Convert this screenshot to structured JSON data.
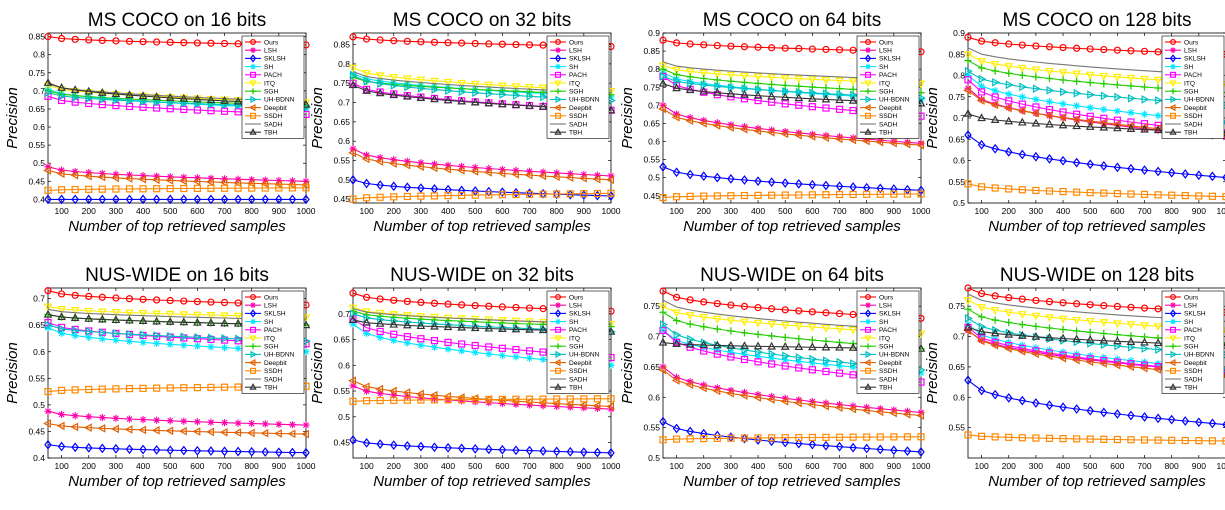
{
  "figure": {
    "background": "#ffffff"
  },
  "style": {
    "methods": [
      {
        "name": "Ours",
        "color": "#ff0000",
        "marker": "circle"
      },
      {
        "name": "LSH",
        "color": "#ff00aa",
        "marker": "star"
      },
      {
        "name": "SKLSH",
        "color": "#0000ff",
        "marker": "diamond"
      },
      {
        "name": "SH",
        "color": "#00e5ff",
        "marker": "star"
      },
      {
        "name": "PACH",
        "color": "#ff00ff",
        "marker": "square"
      },
      {
        "name": "ITQ",
        "color": "#ffee00",
        "marker": "triangle-down"
      },
      {
        "name": "SGH",
        "color": "#22cc00",
        "marker": "plus"
      },
      {
        "name": "UH-BDNN",
        "color": "#00bfbf",
        "marker": "triangle-right"
      },
      {
        "name": "Deepbit",
        "color": "#e06000",
        "marker": "triangle-left"
      },
      {
        "name": "SSDH",
        "color": "#ff8800",
        "marker": "square"
      },
      {
        "name": "SADH",
        "color": "#777777",
        "marker": "none"
      },
      {
        "name": "TBH",
        "color": "#333333",
        "marker": "triangle-up"
      }
    ]
  },
  "chart_data": [
    {
      "type": "line",
      "title": "MS COCO on 16 bits",
      "xlabel": "Number of top retrieved samples",
      "ylabel": "Precision",
      "x": [
        50,
        1000
      ],
      "xlim": [
        50,
        1000
      ],
      "xticks": [
        "100",
        "200",
        "300",
        "400",
        "500",
        "600",
        "700",
        "800",
        "900",
        "1000"
      ],
      "ylim": [
        0.39,
        0.86
      ],
      "yticks": [
        "0.4",
        "0.45",
        "0.5",
        "0.55",
        "0.6",
        "0.65",
        "0.7",
        "0.75",
        "0.8",
        "0.85"
      ],
      "legend": "top-right",
      "series": [
        {
          "name": "Ours",
          "values": [
            0.85,
            0.827
          ]
        },
        {
          "name": "LSH",
          "values": [
            0.49,
            0.45
          ]
        },
        {
          "name": "SKLSH",
          "values": [
            0.4,
            0.4
          ]
        },
        {
          "name": "SH",
          "values": [
            0.705,
            0.65
          ]
        },
        {
          "name": "PACH",
          "values": [
            0.685,
            0.635
          ]
        },
        {
          "name": "ITQ",
          "values": [
            0.715,
            0.668
          ]
        },
        {
          "name": "SGH",
          "values": [
            0.7,
            0.66
          ]
        },
        {
          "name": "UH-BDNN",
          "values": [
            0.695,
            0.655
          ]
        },
        {
          "name": "Deepbit",
          "values": [
            0.48,
            0.44
          ]
        },
        {
          "name": "SSDH",
          "values": [
            0.425,
            0.432
          ]
        },
        {
          "name": "SADH",
          "values": [
            0.72,
            0.67
          ]
        },
        {
          "name": "TBH",
          "values": [
            0.722,
            0.662
          ]
        }
      ]
    },
    {
      "type": "line",
      "title": "MS COCO on 32 bits",
      "xlabel": "Number of top retrieved samples",
      "ylabel": "Precision",
      "x": [
        50,
        1000
      ],
      "xlim": [
        50,
        1000
      ],
      "xticks": [
        "100",
        "200",
        "300",
        "400",
        "500",
        "600",
        "700",
        "800",
        "900",
        "1000"
      ],
      "ylim": [
        0.44,
        0.88
      ],
      "yticks": [
        "0.45",
        "0.5",
        "0.55",
        "0.6",
        "0.65",
        "0.7",
        "0.75",
        "0.8",
        "0.85"
      ],
      "legend": "top-right",
      "series": [
        {
          "name": "Ours",
          "values": [
            0.87,
            0.845
          ]
        },
        {
          "name": "LSH",
          "values": [
            0.58,
            0.51
          ]
        },
        {
          "name": "SKLSH",
          "values": [
            0.5,
            0.458
          ]
        },
        {
          "name": "SH",
          "values": [
            0.775,
            0.715
          ]
        },
        {
          "name": "PACH",
          "values": [
            0.75,
            0.68
          ]
        },
        {
          "name": "ITQ",
          "values": [
            0.79,
            0.73
          ]
        },
        {
          "name": "SGH",
          "values": [
            0.765,
            0.72
          ]
        },
        {
          "name": "UH-BDNN",
          "values": [
            0.77,
            0.705
          ]
        },
        {
          "name": "Deepbit",
          "values": [
            0.57,
            0.5
          ]
        },
        {
          "name": "SSDH",
          "values": [
            0.45,
            0.465
          ]
        },
        {
          "name": "SADH",
          "values": [
            0.78,
            0.725
          ]
        },
        {
          "name": "TBH",
          "values": [
            0.745,
            0.68
          ]
        }
      ]
    },
    {
      "type": "line",
      "title": "MS COCO on 64 bits",
      "xlabel": "Number of top retrieved samples",
      "ylabel": "Precision",
      "x": [
        50,
        1000
      ],
      "xlim": [
        50,
        1000
      ],
      "xticks": [
        "100",
        "200",
        "300",
        "400",
        "500",
        "600",
        "700",
        "800",
        "900",
        "1000"
      ],
      "ylim": [
        0.43,
        0.9
      ],
      "yticks": [
        "0.45",
        "0.5",
        "0.55",
        "0.6",
        "0.65",
        "0.7",
        "0.75",
        "0.8",
        "0.85",
        "0.9"
      ],
      "legend": "top-right",
      "series": [
        {
          "name": "Ours",
          "values": [
            0.88,
            0.848
          ]
        },
        {
          "name": "LSH",
          "values": [
            0.7,
            0.595
          ]
        },
        {
          "name": "SKLSH",
          "values": [
            0.53,
            0.465
          ]
        },
        {
          "name": "SH",
          "values": [
            0.79,
            0.715
          ]
        },
        {
          "name": "PACH",
          "values": [
            0.78,
            0.67
          ]
        },
        {
          "name": "ITQ",
          "values": [
            0.81,
            0.76
          ]
        },
        {
          "name": "SGH",
          "values": [
            0.8,
            0.735
          ]
        },
        {
          "name": "UH-BDNN",
          "values": [
            0.78,
            0.72
          ]
        },
        {
          "name": "Deepbit",
          "values": [
            0.69,
            0.59
          ]
        },
        {
          "name": "SSDH",
          "values": [
            0.445,
            0.455
          ]
        },
        {
          "name": "SADH",
          "values": [
            0.82,
            0.77
          ]
        },
        {
          "name": "TBH",
          "values": [
            0.76,
            0.705
          ]
        }
      ]
    },
    {
      "type": "line",
      "title": "MS COCO on 128 bits",
      "xlabel": "Number of top retrieved samples",
      "ylabel": "Precision",
      "x": [
        50,
        1000
      ],
      "xlim": [
        50,
        1000
      ],
      "xticks": [
        "100",
        "200",
        "300",
        "400",
        "500",
        "600",
        "700",
        "800",
        "900",
        "1000"
      ],
      "ylim": [
        0.5,
        0.9
      ],
      "yticks": [
        "0.5",
        "0.55",
        "0.6",
        "0.65",
        "0.7",
        "0.75",
        "0.8",
        "0.85",
        "0.9"
      ],
      "legend": "top-right",
      "series": [
        {
          "name": "Ours",
          "values": [
            0.89,
            0.85
          ]
        },
        {
          "name": "LSH",
          "values": [
            0.77,
            0.655
          ]
        },
        {
          "name": "SKLSH",
          "values": [
            0.66,
            0.56
          ]
        },
        {
          "name": "SH",
          "values": [
            0.8,
            0.69
          ]
        },
        {
          "name": "PACH",
          "values": [
            0.79,
            0.665
          ]
        },
        {
          "name": "ITQ",
          "values": [
            0.85,
            0.78
          ]
        },
        {
          "name": "SGH",
          "values": [
            0.835,
            0.76
          ]
        },
        {
          "name": "UH-BDNN",
          "values": [
            0.81,
            0.73
          ]
        },
        {
          "name": "Deepbit",
          "values": [
            0.765,
            0.66
          ]
        },
        {
          "name": "SSDH",
          "values": [
            0.545,
            0.515
          ]
        },
        {
          "name": "SADH",
          "values": [
            0.865,
            0.8
          ]
        },
        {
          "name": "TBH",
          "values": [
            0.71,
            0.665
          ]
        }
      ]
    },
    {
      "type": "line",
      "title": "NUS-WIDE on 16 bits",
      "xlabel": "Number of top retrieved samples",
      "ylabel": "Precision",
      "x": [
        50,
        1000
      ],
      "xlim": [
        50,
        1000
      ],
      "xticks": [
        "100",
        "200",
        "300",
        "400",
        "500",
        "600",
        "700",
        "800",
        "900",
        "1000"
      ],
      "ylim": [
        0.4,
        0.72
      ],
      "yticks": [
        "0.4",
        "0.45",
        "0.5",
        "0.55",
        "0.6",
        "0.65",
        "0.7"
      ],
      "legend": "top-right",
      "series": [
        {
          "name": "Ours",
          "values": [
            0.715,
            0.688
          ]
        },
        {
          "name": "LSH",
          "values": [
            0.488,
            0.462
          ]
        },
        {
          "name": "SKLSH",
          "values": [
            0.425,
            0.41
          ]
        },
        {
          "name": "SH",
          "values": [
            0.645,
            0.6
          ]
        },
        {
          "name": "PACH",
          "values": [
            0.655,
            0.615
          ]
        },
        {
          "name": "ITQ",
          "values": [
            0.685,
            0.665
          ]
        },
        {
          "name": "SGH",
          "values": [
            0.67,
            0.65
          ]
        },
        {
          "name": "UH-BDNN",
          "values": [
            0.65,
            0.62
          ]
        },
        {
          "name": "Deepbit",
          "values": [
            0.465,
            0.445
          ]
        },
        {
          "name": "SSDH",
          "values": [
            0.525,
            0.535
          ]
        },
        {
          "name": "SADH",
          "values": [
            0.68,
            0.66
          ]
        },
        {
          "name": "TBH",
          "values": [
            0.67,
            0.65
          ]
        }
      ]
    },
    {
      "type": "line",
      "title": "NUS-WIDE on 32 bits",
      "xlabel": "Number of top retrieved samples",
      "ylabel": "Precision",
      "x": [
        50,
        1000
      ],
      "xlim": [
        50,
        1000
      ],
      "xticks": [
        "100",
        "200",
        "300",
        "400",
        "500",
        "600",
        "700",
        "800",
        "900",
        "1000"
      ],
      "ylim": [
        0.42,
        0.75
      ],
      "yticks": [
        "0.45",
        "0.5",
        "0.55",
        "0.6",
        "0.65",
        "0.7"
      ],
      "legend": "top-right",
      "series": [
        {
          "name": "Ours",
          "values": [
            0.74,
            0.705
          ]
        },
        {
          "name": "LSH",
          "values": [
            0.56,
            0.515
          ]
        },
        {
          "name": "SKLSH",
          "values": [
            0.455,
            0.43
          ]
        },
        {
          "name": "SH",
          "values": [
            0.68,
            0.6
          ]
        },
        {
          "name": "PACH",
          "values": [
            0.69,
            0.615
          ]
        },
        {
          "name": "ITQ",
          "values": [
            0.712,
            0.68
          ]
        },
        {
          "name": "SGH",
          "values": [
            0.705,
            0.675
          ]
        },
        {
          "name": "UH-BDNN",
          "values": [
            0.7,
            0.665
          ]
        },
        {
          "name": "Deepbit",
          "values": [
            0.57,
            0.52
          ]
        },
        {
          "name": "SSDH",
          "values": [
            0.53,
            0.535
          ]
        },
        {
          "name": "SADH",
          "values": [
            0.71,
            0.68
          ]
        },
        {
          "name": "TBH",
          "values": [
            0.688,
            0.665
          ]
        }
      ]
    },
    {
      "type": "line",
      "title": "NUS-WIDE on 64 bits",
      "xlabel": "Number of top retrieved samples",
      "ylabel": "Precision",
      "x": [
        50,
        1000
      ],
      "xlim": [
        50,
        1000
      ],
      "xticks": [
        "100",
        "200",
        "300",
        "400",
        "500",
        "600",
        "700",
        "800",
        "900",
        "1000"
      ],
      "ylim": [
        0.5,
        0.78
      ],
      "yticks": [
        "0.5",
        "0.55",
        "0.6",
        "0.65",
        "0.7",
        "0.75"
      ],
      "legend": "top-right",
      "series": [
        {
          "name": "Ours",
          "values": [
            0.775,
            0.73
          ]
        },
        {
          "name": "LSH",
          "values": [
            0.65,
            0.575
          ]
        },
        {
          "name": "SKLSH",
          "values": [
            0.56,
            0.51
          ]
        },
        {
          "name": "SH",
          "values": [
            0.71,
            0.64
          ]
        },
        {
          "name": "PACH",
          "values": [
            0.71,
            0.625
          ]
        },
        {
          "name": "ITQ",
          "values": [
            0.75,
            0.705
          ]
        },
        {
          "name": "SGH",
          "values": [
            0.74,
            0.68
          ]
        },
        {
          "name": "UH-BDNN",
          "values": [
            0.72,
            0.645
          ]
        },
        {
          "name": "Deepbit",
          "values": [
            0.645,
            0.57
          ]
        },
        {
          "name": "SSDH",
          "values": [
            0.53,
            0.535
          ]
        },
        {
          "name": "SADH",
          "values": [
            0.76,
            0.71
          ]
        },
        {
          "name": "TBH",
          "values": [
            0.69,
            0.68
          ]
        }
      ]
    },
    {
      "type": "line",
      "title": "NUS-WIDE on 128 bits",
      "xlabel": "Number of top retrieved samples",
      "ylabel": "Precision",
      "x": [
        50,
        1000
      ],
      "xlim": [
        50,
        1000
      ],
      "xticks": [
        "100",
        "200",
        "300",
        "400",
        "500",
        "600",
        "700",
        "800",
        "900",
        "1000"
      ],
      "ylim": [
        0.5,
        0.78
      ],
      "yticks": [
        "0.55",
        "0.6",
        "0.65",
        "0.7",
        "0.75"
      ],
      "legend": "top-right",
      "series": [
        {
          "name": "Ours",
          "values": [
            0.78,
            0.74
          ]
        },
        {
          "name": "LSH",
          "values": [
            0.71,
            0.64
          ]
        },
        {
          "name": "SKLSH",
          "values": [
            0.628,
            0.555
          ]
        },
        {
          "name": "SH",
          "values": [
            0.72,
            0.645
          ]
        },
        {
          "name": "PACH",
          "values": [
            0.715,
            0.64
          ]
        },
        {
          "name": "ITQ",
          "values": [
            0.76,
            0.71
          ]
        },
        {
          "name": "SGH",
          "values": [
            0.745,
            0.69
          ]
        },
        {
          "name": "UH-BDNN",
          "values": [
            0.73,
            0.67
          ]
        },
        {
          "name": "Deepbit",
          "values": [
            0.71,
            0.635
          ]
        },
        {
          "name": "SSDH",
          "values": [
            0.538,
            0.528
          ]
        },
        {
          "name": "SADH",
          "values": [
            0.77,
            0.725
          ]
        },
        {
          "name": "TBH",
          "values": [
            0.715,
            0.685
          ]
        }
      ]
    }
  ]
}
